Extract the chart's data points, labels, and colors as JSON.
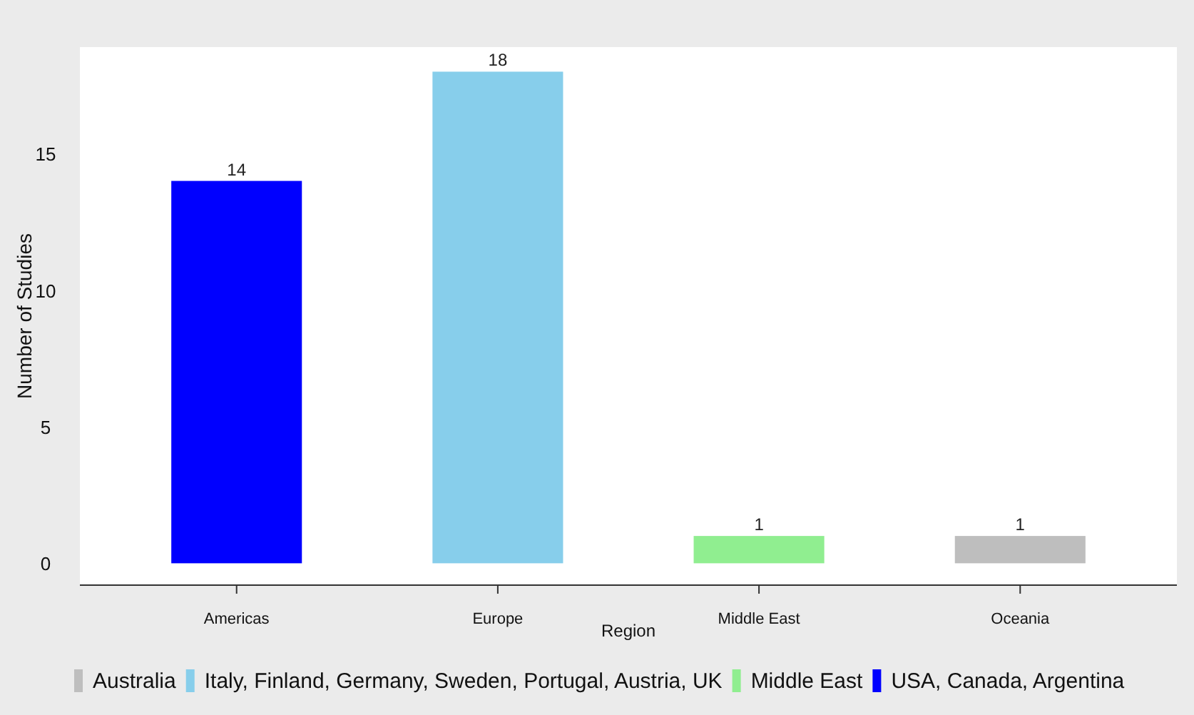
{
  "chart_data": {
    "type": "bar",
    "xlabel": "Region",
    "ylabel": "Number of Studies",
    "categories": [
      "Americas",
      "Europe",
      "Middle East",
      "Oceania"
    ],
    "series": [
      {
        "name": "Australia",
        "color": "#bebebe",
        "values": [
          null,
          null,
          null,
          1
        ]
      },
      {
        "name": "Italy, Finland, Germany, Sweden, Portugal, Austria, UK",
        "color": "#87ceeb",
        "values": [
          null,
          18,
          null,
          null
        ]
      },
      {
        "name": "Middle East",
        "color": "#90ee90",
        "values": [
          null,
          null,
          1,
          null
        ]
      },
      {
        "name": "USA, Canada, Argentina",
        "color": "#0000ff",
        "values": [
          14,
          null,
          null,
          null
        ]
      }
    ],
    "stacked": true,
    "ylim": [
      -0.8,
      18.9
    ],
    "yticks": [
      0,
      5,
      10,
      15
    ],
    "data_labels": true,
    "legend": "bottom",
    "grid": false
  }
}
